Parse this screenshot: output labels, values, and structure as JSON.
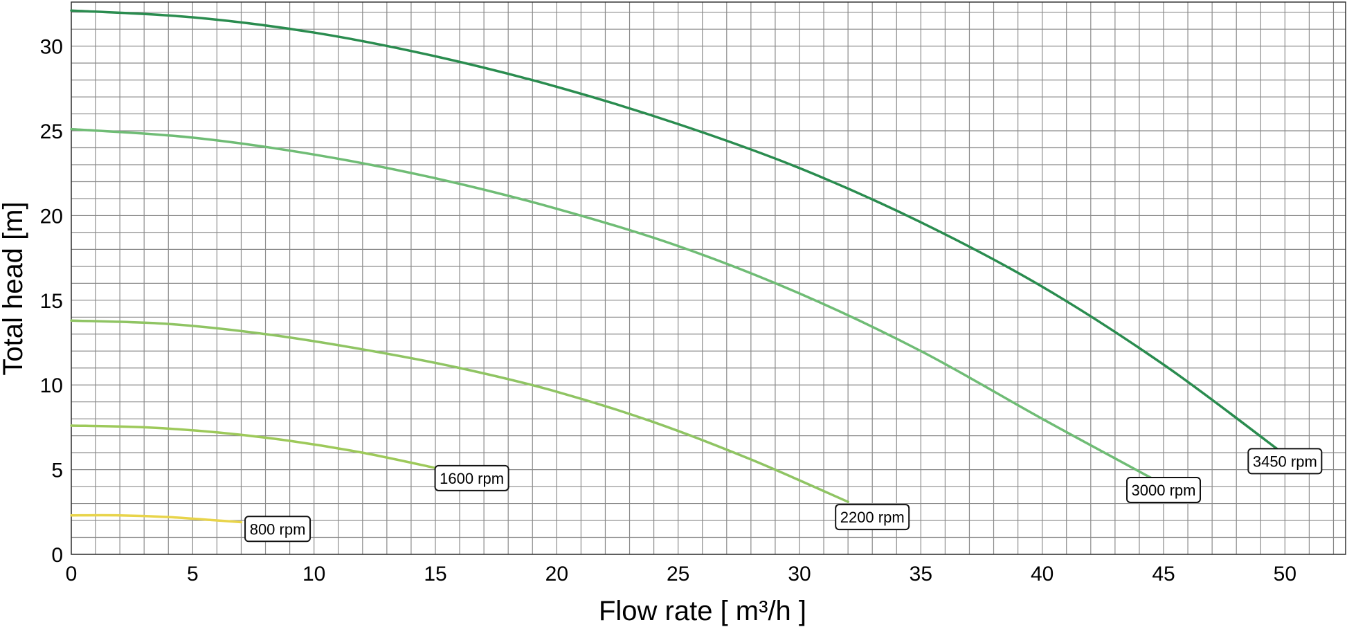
{
  "chart_data": {
    "type": "line",
    "title": "",
    "xlabel": "Flow rate [ m³/h ]",
    "ylabel": "Total head [m]",
    "xlim": [
      0,
      52.5
    ],
    "ylim": [
      0,
      32.6
    ],
    "xticks": [
      0,
      5,
      10,
      15,
      20,
      25,
      30,
      35,
      40,
      45,
      50
    ],
    "yticks": [
      0,
      5,
      10,
      15,
      20,
      25,
      30
    ],
    "grid": true,
    "minor_grid_step_x": 1,
    "minor_grid_step_y": 1,
    "series": [
      {
        "name": "800 rpm",
        "color": "#e8d44a",
        "shutoff_head": 2.3,
        "x": [
          0,
          2,
          4,
          6,
          7
        ],
        "y": [
          2.3,
          2.3,
          2.2,
          2.0,
          1.9
        ]
      },
      {
        "name": "1600 rpm",
        "color": "#9dc95a",
        "shutoff_head": 7.6,
        "x": [
          0,
          3,
          6,
          9,
          12,
          15
        ],
        "y": [
          7.6,
          7.5,
          7.2,
          6.7,
          6.0,
          5.1
        ]
      },
      {
        "name": "2200 rpm",
        "color": "#8fc463",
        "shutoff_head": 13.8,
        "x": [
          0,
          4,
          8,
          12,
          16,
          20,
          24,
          28,
          32
        ],
        "y": [
          13.8,
          13.6,
          13.0,
          12.1,
          11.0,
          9.6,
          7.8,
          5.6,
          3.1
        ]
      },
      {
        "name": "3000 rpm",
        "color": "#6fbc75",
        "shutoff_head": 25.1,
        "x": [
          0,
          5,
          10,
          15,
          20,
          25,
          30,
          35,
          40,
          44.5
        ],
        "y": [
          25.1,
          24.6,
          23.6,
          22.2,
          20.4,
          18.2,
          15.4,
          12.0,
          8.0,
          4.5
        ]
      },
      {
        "name": "3450 rpm",
        "color": "#2a8c4f",
        "shutoff_head": 32.1,
        "x": [
          0,
          5,
          10,
          15,
          20,
          25,
          30,
          35,
          40,
          45,
          49.7
        ],
        "y": [
          32.1,
          31.7,
          30.8,
          29.4,
          27.6,
          25.4,
          22.8,
          19.6,
          15.8,
          11.2,
          6.2
        ]
      }
    ],
    "annotations": [
      {
        "series": "800 rpm",
        "x": 8.5,
        "y": 1.5
      },
      {
        "series": "1600 rpm",
        "x": 16.5,
        "y": 4.5
      },
      {
        "series": "2200 rpm",
        "x": 33.0,
        "y": 2.2
      },
      {
        "series": "3000 rpm",
        "x": 45.0,
        "y": 3.8
      },
      {
        "series": "3450 rpm",
        "x": 50.0,
        "y": 5.5
      }
    ]
  }
}
